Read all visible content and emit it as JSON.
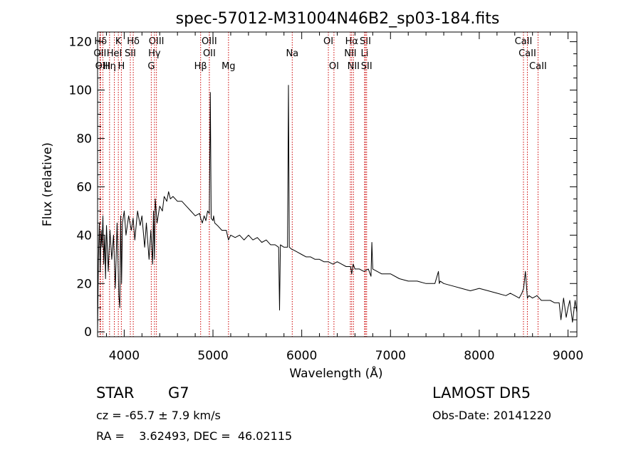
{
  "chart_data": {
    "type": "line",
    "title": "spec-57012-M31004N46B2_sp03-184.fits",
    "xlabel": "Wavelength (Å)",
    "ylabel": "Flux (relative)",
    "xlim": [
      3700,
      9100
    ],
    "ylim": [
      -2,
      124
    ],
    "xticks": [
      4000,
      5000,
      6000,
      7000,
      8000,
      9000
    ],
    "yticks": [
      0,
      20,
      40,
      60,
      80,
      100,
      120
    ],
    "grid": false,
    "line_color": "#000000",
    "marker_color": "#cc0000",
    "spectrum": {
      "x": [
        3700,
        3710,
        3720,
        3730,
        3740,
        3750,
        3760,
        3770,
        3780,
        3790,
        3800,
        3820,
        3840,
        3860,
        3880,
        3900,
        3920,
        3940,
        3950,
        3960,
        3970,
        3980,
        4000,
        4020,
        4050,
        4080,
        4100,
        4120,
        4150,
        4180,
        4200,
        4230,
        4250,
        4280,
        4300,
        4320,
        4330,
        4340,
        4350,
        4370,
        4400,
        4430,
        4450,
        4480,
        4500,
        4520,
        4550,
        4600,
        4650,
        4700,
        4750,
        4800,
        4850,
        4861,
        4880,
        4900,
        4920,
        4940,
        4959,
        4970,
        4980,
        5000,
        5007,
        5020,
        5050,
        5100,
        5150,
        5175,
        5200,
        5250,
        5300,
        5350,
        5400,
        5450,
        5500,
        5550,
        5600,
        5650,
        5700,
        5740,
        5750,
        5760,
        5800,
        5840,
        5850,
        5860,
        5893,
        5900,
        5950,
        6000,
        6050,
        6100,
        6150,
        6200,
        6250,
        6300,
        6350,
        6400,
        6450,
        6500,
        6550,
        6563,
        6580,
        6600,
        6650,
        6700,
        6750,
        6780,
        6790,
        6800,
        6850,
        6900,
        6950,
        7000,
        7100,
        7200,
        7300,
        7400,
        7500,
        7540,
        7550,
        7560,
        7600,
        7700,
        7800,
        7900,
        8000,
        8100,
        8200,
        8300,
        8350,
        8400,
        8450,
        8480,
        8500,
        8520,
        8542,
        8560,
        8600,
        8650,
        8700,
        8750,
        8800,
        8850,
        8900,
        8920,
        8950,
        8980,
        9000,
        9020,
        9050,
        9080,
        9100
      ],
      "y": [
        0,
        30,
        45,
        25,
        42,
        35,
        48,
        28,
        40,
        22,
        44,
        25,
        42,
        30,
        40,
        18,
        45,
        15,
        10,
        48,
        20,
        45,
        50,
        40,
        48,
        42,
        47,
        38,
        50,
        44,
        48,
        35,
        45,
        30,
        42,
        28,
        50,
        30,
        55,
        45,
        52,
        50,
        56,
        54,
        58,
        55,
        56,
        54,
        54,
        52,
        50,
        48,
        49,
        47,
        45,
        48,
        46,
        50,
        49,
        99,
        47,
        46,
        48,
        45,
        44,
        42,
        42,
        38,
        40,
        39,
        40,
        38,
        40,
        38,
        39,
        37,
        38,
        36,
        36,
        35,
        9,
        36,
        35,
        35,
        102,
        35,
        34,
        34,
        33,
        32,
        31,
        31,
        30,
        30,
        29,
        29,
        28,
        29,
        28,
        27,
        27,
        24,
        28,
        26,
        26,
        25,
        26,
        23,
        37,
        26,
        25,
        24,
        24,
        24,
        22,
        21,
        21,
        20,
        20,
        25,
        20,
        21,
        20,
        19,
        18,
        17,
        18,
        17,
        16,
        15,
        16,
        15,
        14,
        16,
        18,
        25,
        14,
        15,
        14,
        15,
        13,
        13,
        13,
        12,
        12,
        5,
        14,
        6,
        10,
        13,
        4,
        13,
        8
      ]
    },
    "lines": [
      {
        "label": "Hδ",
        "x": 3734,
        "row": 0
      },
      {
        "label": "K",
        "x": 3934,
        "row": 0
      },
      {
        "label": "Hδ",
        "x": 4102,
        "row": 0
      },
      {
        "label": "OIII",
        "x": 4363,
        "row": 0
      },
      {
        "label": "OIII",
        "x": 4959,
        "row": 0
      },
      {
        "label": "OI",
        "x": 6300,
        "row": 0
      },
      {
        "label": "Hα",
        "x": 6563,
        "row": 0
      },
      {
        "label": "SII",
        "x": 6717,
        "row": 0
      },
      {
        "label": "CaII",
        "x": 8498,
        "row": 0
      },
      {
        "label": "OII",
        "x": 3727,
        "row": 1
      },
      {
        "label": "HeI",
        "x": 3889,
        "row": 1
      },
      {
        "label": "SII",
        "x": 4069,
        "row": 1
      },
      {
        "label": "Hγ",
        "x": 4341,
        "row": 1
      },
      {
        "label": "OII",
        "x": 4959,
        "row": 1
      },
      {
        "label": "Na",
        "x": 5893,
        "row": 1
      },
      {
        "label": "NII",
        "x": 6548,
        "row": 1
      },
      {
        "label": "Li",
        "x": 6708,
        "row": 1
      },
      {
        "label": "CaII",
        "x": 8542,
        "row": 1
      },
      {
        "label": "OIII",
        "x": 3760,
        "row": 2
      },
      {
        "label": "Hη",
        "x": 3835,
        "row": 2
      },
      {
        "label": "H",
        "x": 3968,
        "row": 2
      },
      {
        "label": "G",
        "x": 4305,
        "row": 2
      },
      {
        "label": "Hβ",
        "x": 4861,
        "row": 2
      },
      {
        "label": "Mg",
        "x": 5175,
        "row": 2
      },
      {
        "label": "OI",
        "x": 6363,
        "row": 2
      },
      {
        "label": "NII",
        "x": 6583,
        "row": 2
      },
      {
        "label": "SII",
        "x": 6731,
        "row": 2
      },
      {
        "label": "CaII",
        "x": 8662,
        "row": 2
      }
    ]
  },
  "info": {
    "object": "STAR",
    "subclass": "G7",
    "survey": "LAMOST DR5",
    "cz": "cz = -65.7 ± 7.9 km/s",
    "obs_date": "Obs-Date: 20141220",
    "coords": "RA =    3.62493, DEC =  46.02115"
  }
}
